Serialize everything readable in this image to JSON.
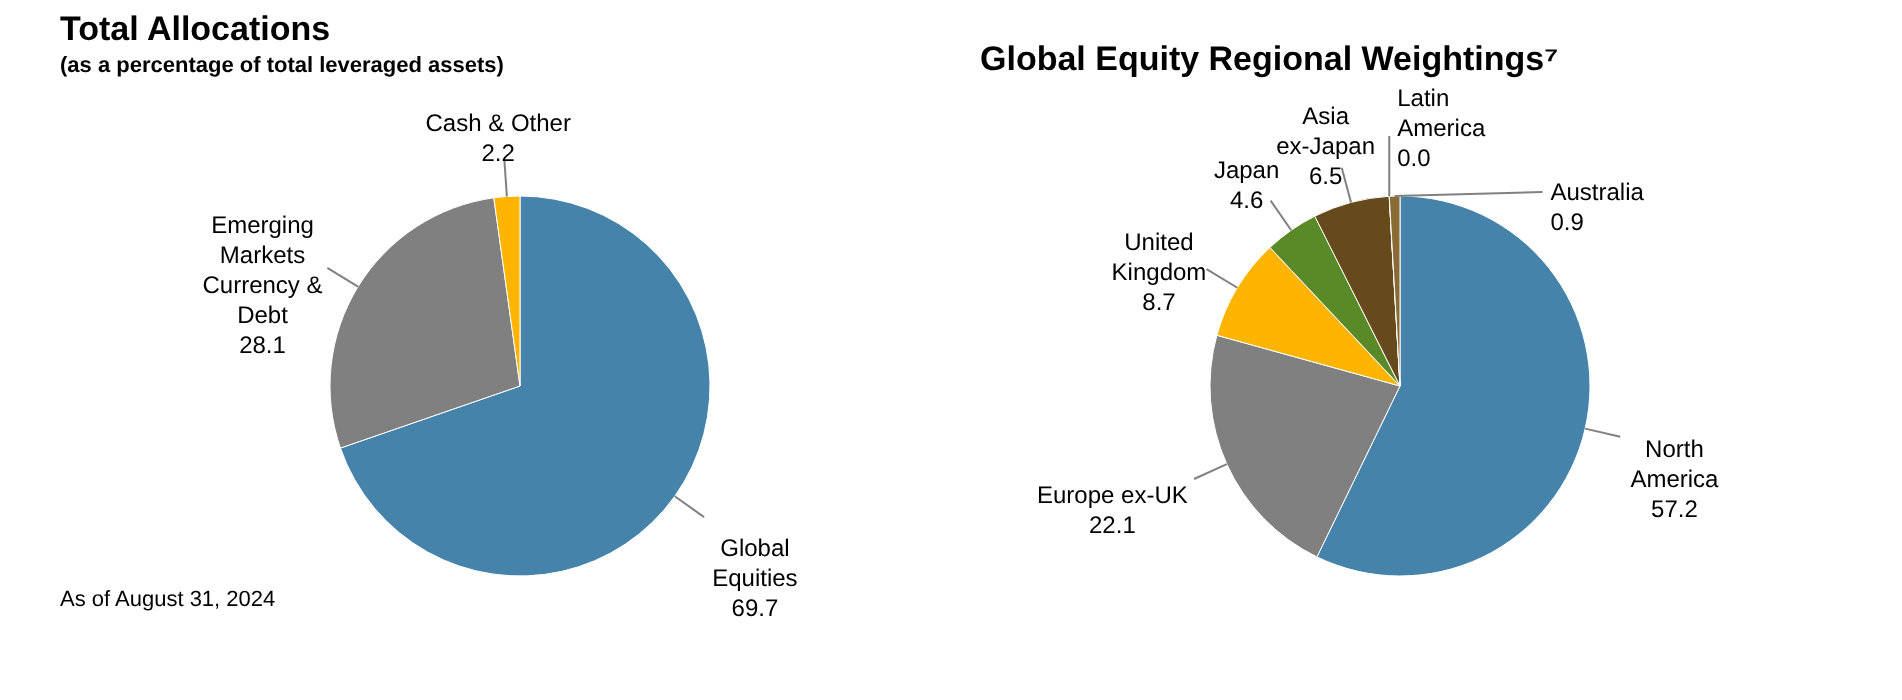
{
  "chart_data": [
    {
      "type": "pie",
      "title": "Total Allocations",
      "subtitle": "(as a percentage of total leveraged assets)",
      "categories": [
        "Global Equities",
        "Emerging Markets Currency & Debt",
        "Cash & Other"
      ],
      "values": [
        69.7,
        28.1,
        2.2
      ],
      "colors": [
        "#4683ab",
        "#808080",
        "#ffb400"
      ],
      "data_labels": true,
      "legend": false,
      "annotations": [
        "As of August 31, 2024"
      ]
    },
    {
      "type": "pie",
      "title": "Global Equity Regional Weightings⁷",
      "categories": [
        "North America",
        "Europe ex-UK",
        "United Kingdom",
        "Japan",
        "Asia ex-Japan",
        "Latin America",
        "Australia"
      ],
      "values": [
        57.2,
        22.1,
        8.7,
        4.6,
        6.5,
        0.0,
        0.9
      ],
      "colors": [
        "#4683ab",
        "#808080",
        "#ffb400",
        "#5a8a27",
        "#664a1b",
        "#7a5c2a",
        "#8b6b35"
      ],
      "value_labels": [
        "57.2",
        "22.1",
        "8.7",
        "4.6",
        "6.5",
        "0.0",
        "0.9"
      ],
      "legend": false
    }
  ]
}
